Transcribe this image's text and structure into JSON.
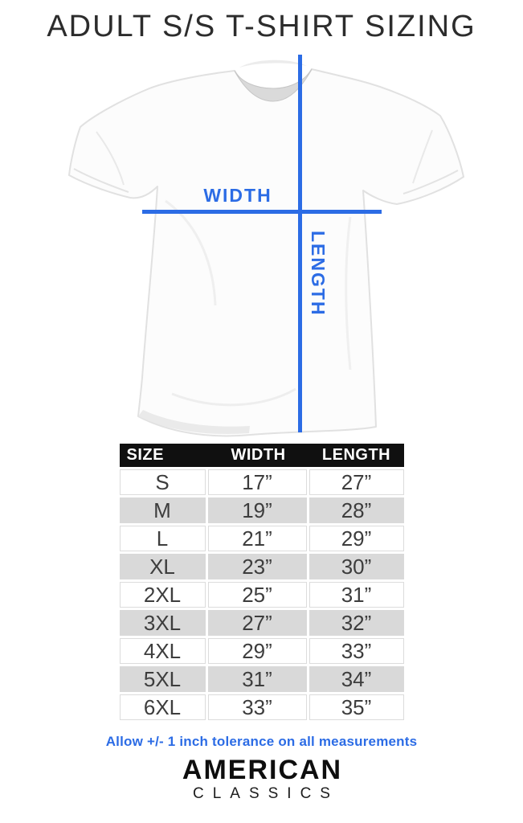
{
  "title": "ADULT S/S T-SHIRT SIZING",
  "diagram": {
    "width_label": "WIDTH",
    "length_label": "LENGTH"
  },
  "chart_data": {
    "type": "table",
    "title": "ADULT S/S T-SHIRT SIZING",
    "columns": [
      "SIZE",
      "WIDTH",
      "LENGTH"
    ],
    "rows": [
      [
        "S",
        "17”",
        "27”"
      ],
      [
        "M",
        "19”",
        "28”"
      ],
      [
        "L",
        "21”",
        "29”"
      ],
      [
        "XL",
        "23”",
        "30”"
      ],
      [
        "2XL",
        "25”",
        "31”"
      ],
      [
        "3XL",
        "27”",
        "32”"
      ],
      [
        "4XL",
        "29”",
        "33”"
      ],
      [
        "5XL",
        "31”",
        "34”"
      ],
      [
        "6XL",
        "33”",
        "35”"
      ]
    ],
    "footnote": "Allow +/- 1 inch tolerance on all measurements"
  },
  "note": "Allow +/- 1 inch tolerance on all measurements",
  "brand": {
    "line1": "AMERICAN",
    "line2": "CLASSICS"
  },
  "colors": {
    "accent": "#2c6ce5",
    "header-bg": "#101010",
    "stripe": "#d9d9d9"
  }
}
